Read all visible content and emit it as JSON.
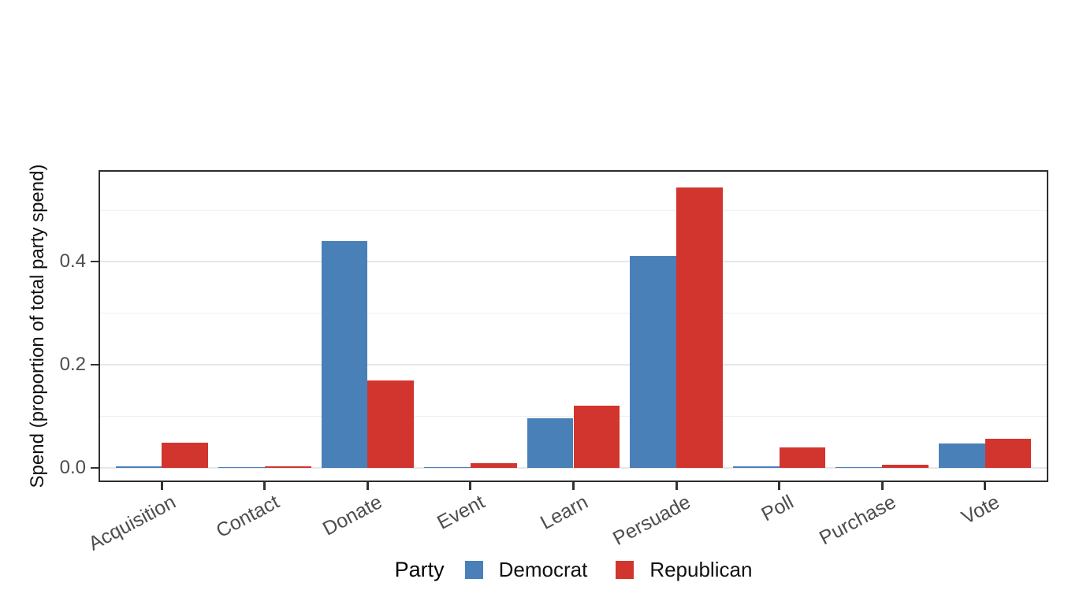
{
  "chart_data": {
    "type": "bar",
    "title": "",
    "xlabel": "",
    "ylabel": "Spend (proportion of total party spend)",
    "categories": [
      "Acquisition",
      "Contact",
      "Donate",
      "Event",
      "Learn",
      "Persuade",
      "Poll",
      "Purchase",
      "Vote"
    ],
    "series": [
      {
        "name": "Democrat",
        "color": "#4a80b8",
        "values": [
          0.002,
          0.001,
          0.441,
          0.001,
          0.096,
          0.412,
          0.003,
          0.001,
          0.047
        ]
      },
      {
        "name": "Republican",
        "color": "#d2352e",
        "values": [
          0.049,
          0.003,
          0.17,
          0.009,
          0.121,
          0.545,
          0.04,
          0.005,
          0.056
        ]
      }
    ],
    "y_axis": {
      "range": [
        -0.025,
        0.575
      ],
      "major_ticks": [
        {
          "value": 0.0,
          "label": "0.0"
        },
        {
          "value": 0.2,
          "label": "0.2"
        },
        {
          "value": 0.4,
          "label": "0.4"
        }
      ],
      "minor_gridlines": [
        0.1,
        0.3,
        0.5
      ]
    },
    "grid": true,
    "legend": {
      "title": "Party",
      "position": "bottom"
    },
    "bar_layout": "dodged"
  },
  "colors": {
    "panel_border": "#2e2e2e",
    "gridline_major": "#e7e7e7",
    "gridline_minor": "#efefef",
    "tick": "#333333",
    "tick_label": "#4d4d4d",
    "background": "#ffffff"
  }
}
